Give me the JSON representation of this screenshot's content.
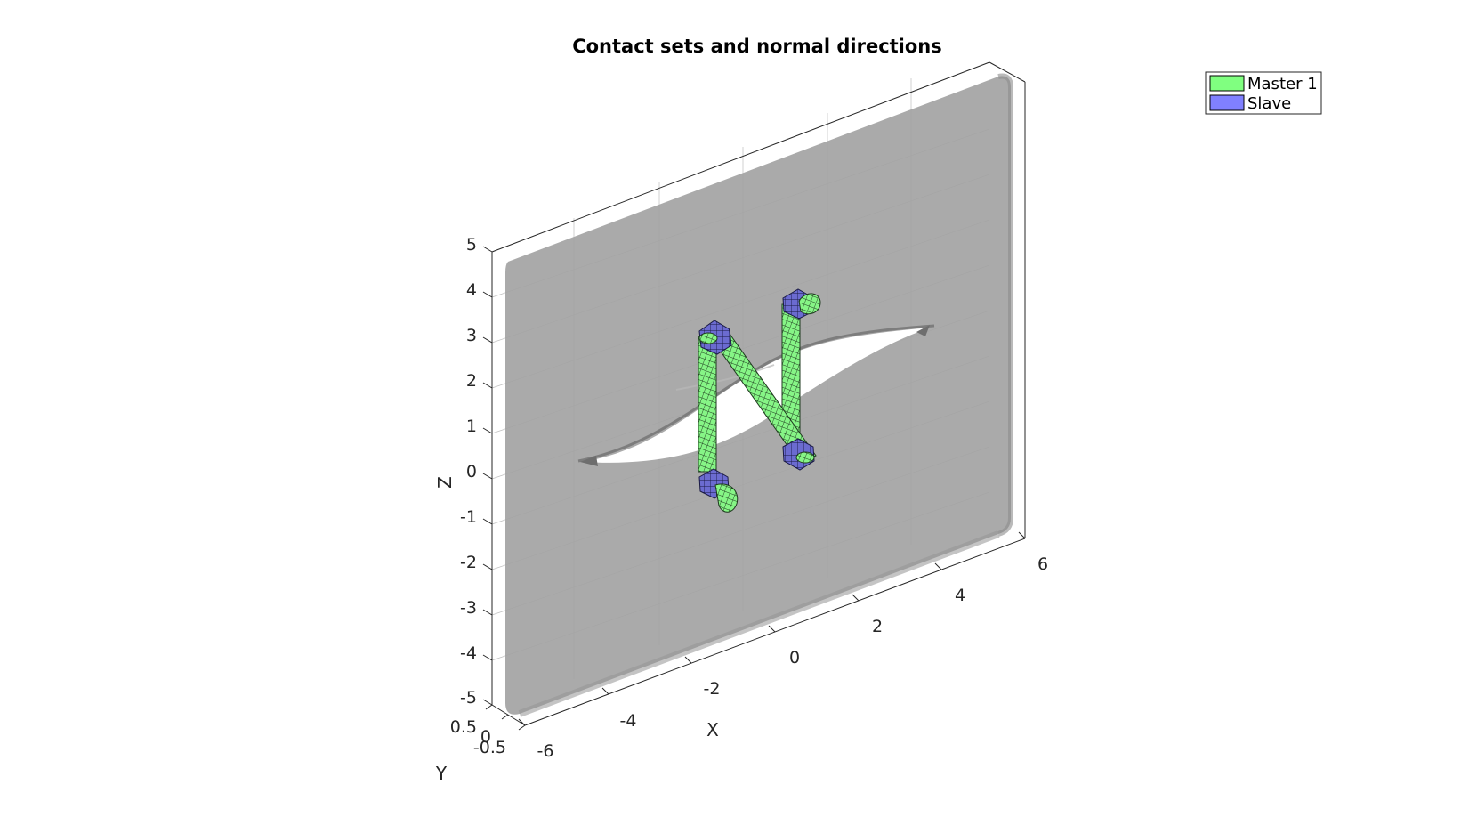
{
  "title": "Contact sets and normal directions",
  "axes": {
    "x": {
      "label": "X",
      "ticks": [
        "-6",
        "-4",
        "-2",
        "0",
        "2",
        "4",
        "6"
      ]
    },
    "y": {
      "label": "Y",
      "ticks": [
        "-0.5",
        "0",
        "0.5"
      ]
    },
    "z": {
      "label": "Z",
      "ticks": [
        "5",
        "4",
        "3",
        "2",
        "1",
        "0",
        "-1",
        "-2",
        "-3",
        "-4",
        "-5"
      ]
    }
  },
  "legend": {
    "placement": "top-right",
    "items": [
      {
        "label": "Master 1",
        "color": "#80ff80"
      },
      {
        "label": "Slave",
        "color": "#8080ff"
      }
    ]
  },
  "colors": {
    "plate": "#a6a6a6",
    "master": "#80ff80",
    "slave": "#7070e0"
  }
}
